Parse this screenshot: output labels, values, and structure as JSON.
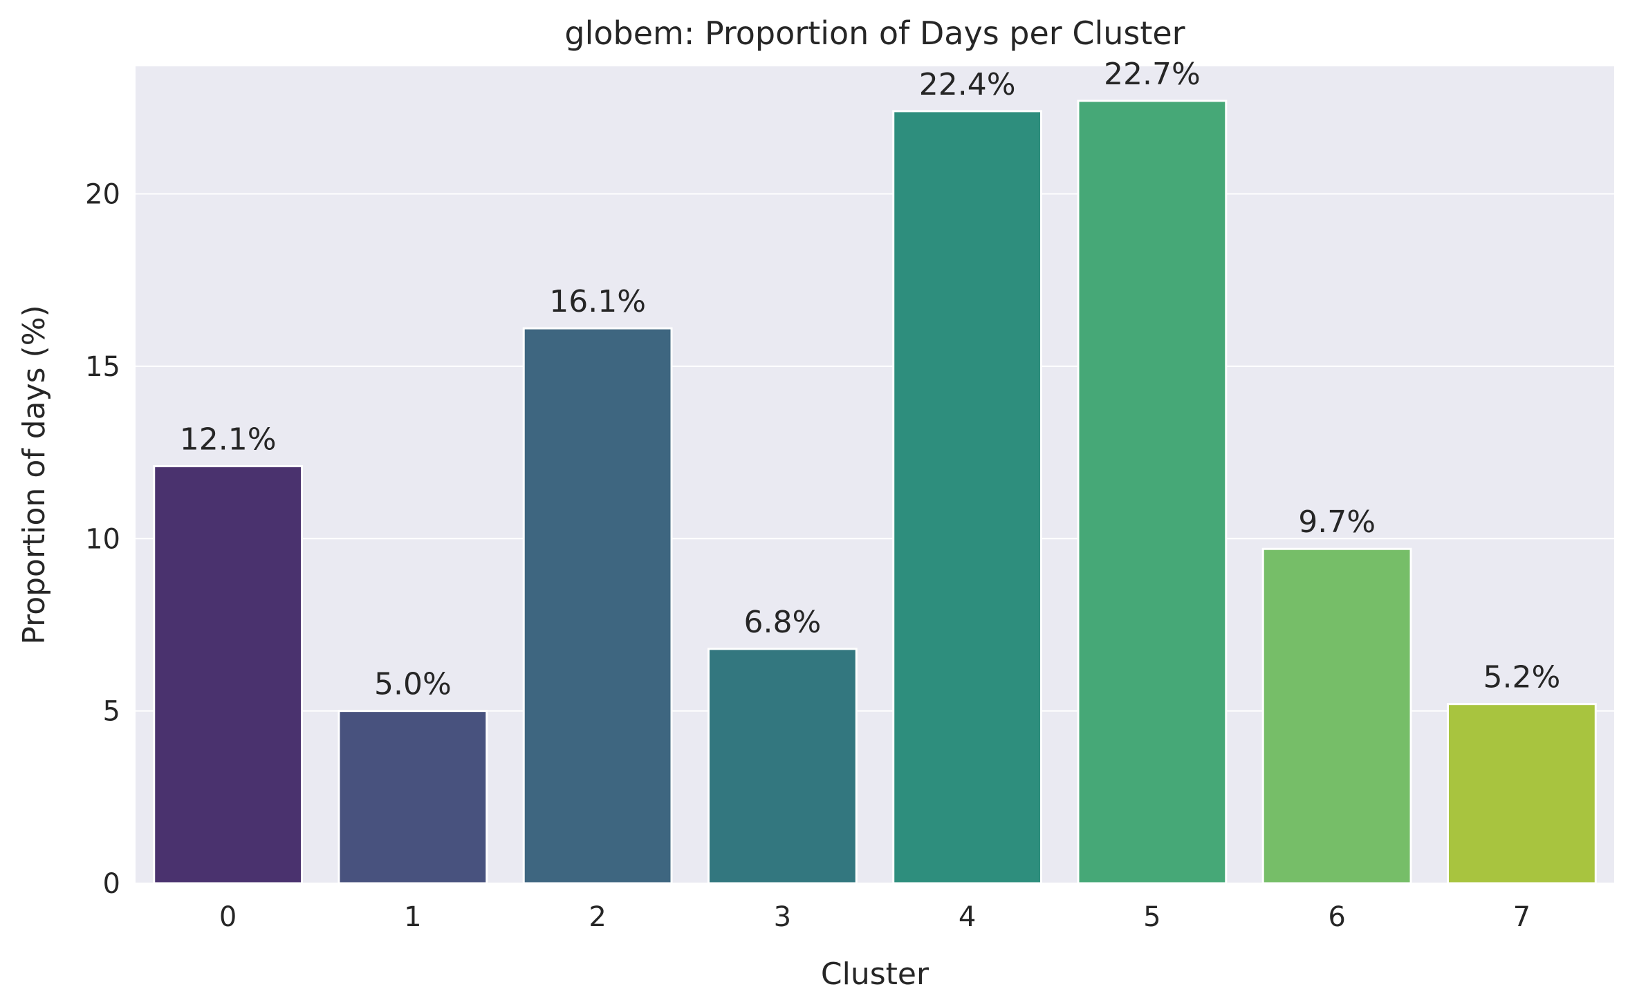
{
  "chart_data": {
    "type": "bar",
    "title": "globem: Proportion of Days per Cluster",
    "xlabel": "Cluster",
    "ylabel": "Proportion of days (%)",
    "categories": [
      "0",
      "1",
      "2",
      "3",
      "4",
      "5",
      "6",
      "7"
    ],
    "values": [
      12.1,
      5.0,
      16.1,
      6.8,
      22.4,
      22.7,
      9.7,
      5.2
    ],
    "value_labels": [
      "12.1%",
      "5.0%",
      "16.1%",
      "6.8%",
      "22.4%",
      "22.7%",
      "9.7%",
      "5.2%"
    ],
    "colors": [
      "#4a326e",
      "#48527e",
      "#3e6680",
      "#33777f",
      "#2e8e7d",
      "#46a877",
      "#76be68",
      "#a8c43f"
    ],
    "yticks": [
      0,
      5,
      10,
      15,
      20
    ],
    "ylim": [
      0,
      23.7
    ],
    "grid": true,
    "background_color": "#eaeaf2",
    "legend": "none"
  }
}
